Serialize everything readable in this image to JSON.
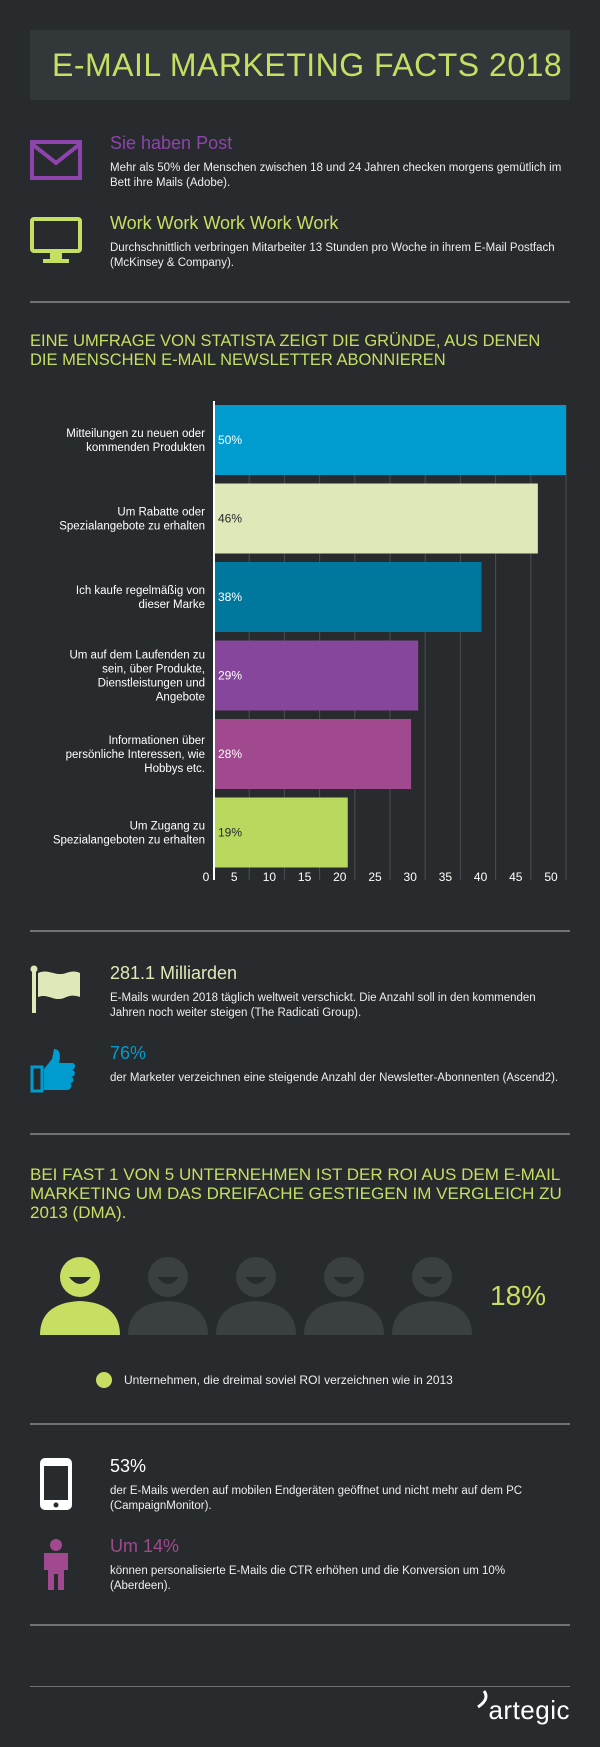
{
  "title": "E-MAIL MARKETING FACTS 2018",
  "facts_top": [
    {
      "icon": "envelope-icon",
      "heading": "Sie haben Post",
      "color": "#8e44ad",
      "text": "Mehr als 50% der Menschen zwischen 18 und 24 Jahren checken morgens gemütlich im Bett ihre Mails (Adobe)."
    },
    {
      "icon": "monitor-icon",
      "heading": "Work Work Work Work Work",
      "color": "#c6df63",
      "text": "Durchschnittlich verbringen Mitarbeiter 13 Stunden pro Woche in ihrem E-Mail Postfach (McKinsey & Company)."
    }
  ],
  "survey_title": "EINE UMFRAGE VON STATISTA ZEIGT DIE GRÜNDE, AUS DENEN DIE MENSCHEN E-MAIL NEWSLETTER ABONNIEREN",
  "chart_data": {
    "type": "bar",
    "orientation": "horizontal",
    "categories": [
      "Mitteilungen zu neuen oder kommenden Produkten",
      "Um Rabatte oder Spezialangebote zu erhalten",
      "Ich kaufe regelmäßig von dieser Marke",
      "Um auf dem Laufenden zu sein, über Produkte, Dienstleistungen und Angebote",
      "Informationen über persönliche Interessen, wie Hobbys etc.",
      "Um Zugang zu Spezialangeboten zu erhalten"
    ],
    "category_lines": [
      [
        "Mitteilungen zu neuen oder",
        "kommenden Produkten"
      ],
      [
        "Um Rabatte oder",
        "Spezialangebote zu erhalten"
      ],
      [
        "Ich kaufe regelmäßig von",
        "dieser Marke"
      ],
      [
        "Um auf dem Laufenden zu",
        "sein, über Produkte,",
        "Dienstleistungen und",
        "Angebote"
      ],
      [
        "Informationen über",
        "persönliche Interessen, wie",
        "Hobbys etc."
      ],
      [
        "Um Zugang zu",
        "Spezialangeboten zu erhalten"
      ]
    ],
    "values": [
      50,
      46,
      38,
      29,
      28,
      19
    ],
    "value_labels": [
      "50%",
      "46%",
      "38%",
      "29%",
      "28%",
      "19%"
    ],
    "bar_colors": [
      "#009ccf",
      "#dfe8b8",
      "#00789e",
      "#86469b",
      "#a0498f",
      "#b9d95e"
    ],
    "label_colors": [
      "#ffffff",
      "#272b2d",
      "#ffffff",
      "#ffffff",
      "#ffffff",
      "#272b2d"
    ],
    "xticks": [
      0,
      5,
      10,
      15,
      20,
      25,
      30,
      35,
      40,
      45,
      50
    ],
    "xlim": [
      0,
      50
    ],
    "grid": true
  },
  "facts_mid": [
    {
      "icon": "flag-icon",
      "heading": "281.1 Milliarden",
      "color": "#dfe8b8",
      "text": "E-Mails wurden 2018 täglich weltweit verschickt. Die Anzahl soll in den kommenden Jahren noch weiter steigen (The Radicati Group)."
    },
    {
      "icon": "thumbs-up-icon",
      "heading": "76%",
      "color": "#009ccf",
      "text": "der Marketer verzeichnen eine steigende Anzahl der Newsletter-Abonnenten (Ascend2)."
    }
  ],
  "roi_title": "BEI FAST 1 VON 5 UNTERNEHMEN IST DER ROI AUS DEM E-MAIL MARKETING UM DAS DREIFACHE GESTIEGEN IM VERGLEICH ZU 2013 (DMA).",
  "roi": {
    "percent_label": "18%",
    "highlighted": 1,
    "total": 5,
    "legend": "Unternehmen, die dreimal soviel ROI verzeichnen wie in 2013",
    "accent": "#c6df63"
  },
  "facts_bottom": [
    {
      "icon": "smartphone-icon",
      "heading": "53%",
      "color": "#ffffff",
      "text": "der E-Mails werden auf mobilen Endgeräten geöffnet und nicht mehr auf dem PC (CampaignMonitor)."
    },
    {
      "icon": "person-icon",
      "heading": "Um 14%",
      "color": "#a0498f",
      "text": "können personalisierte E-Mails die CTR erhöhen und die Konversion um 10% (Aberdeen)."
    }
  ],
  "brand": "artegic"
}
